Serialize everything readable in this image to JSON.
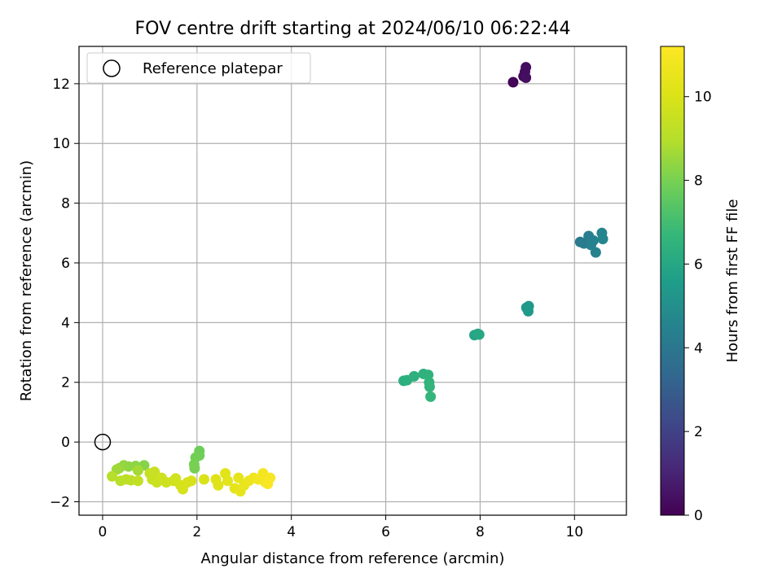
{
  "chart_data": {
    "type": "scatter",
    "title": "FOV centre drift starting at 2024/06/10 06:22:44",
    "xlabel": "Angular distance from reference (arcmin)",
    "ylabel": "Rotation from reference (arcmin)",
    "xlim": [
      -0.5,
      11.1
    ],
    "ylim": [
      -2.45,
      13.25
    ],
    "xticks": [
      "0",
      "2",
      "4",
      "6",
      "8",
      "10"
    ],
    "yticks": [
      "−2",
      "0",
      "2",
      "4",
      "6",
      "8",
      "10",
      "12"
    ],
    "grid": true,
    "legend": {
      "placement": "top-left",
      "entries": [
        "Reference platepar"
      ]
    },
    "reference_point": {
      "x": 0,
      "y": 0,
      "marker": "open-circle"
    },
    "colorbar": {
      "label": "Hours from first FF file",
      "colormap": "viridis",
      "range": [
        0,
        11.2
      ],
      "ticks": [
        "0",
        "2",
        "4",
        "6",
        "8",
        "10"
      ]
    },
    "points": [
      {
        "x": 8.7,
        "y": 12.05,
        "h": 0.1
      },
      {
        "x": 8.92,
        "y": 12.25,
        "h": 0.2
      },
      {
        "x": 8.95,
        "y": 12.4,
        "h": 0.3
      },
      {
        "x": 8.97,
        "y": 12.55,
        "h": 0.35
      },
      {
        "x": 8.97,
        "y": 12.2,
        "h": 0.4
      },
      {
        "x": 10.12,
        "y": 6.7,
        "h": 4.1
      },
      {
        "x": 10.2,
        "y": 6.65,
        "h": 4.2
      },
      {
        "x": 10.3,
        "y": 6.9,
        "h": 4.3
      },
      {
        "x": 10.35,
        "y": 6.6,
        "h": 4.4
      },
      {
        "x": 10.4,
        "y": 6.75,
        "h": 4.45
      },
      {
        "x": 10.45,
        "y": 6.35,
        "h": 4.5
      },
      {
        "x": 10.58,
        "y": 7.0,
        "h": 4.55
      },
      {
        "x": 10.6,
        "y": 6.8,
        "h": 4.6
      },
      {
        "x": 8.98,
        "y": 4.5,
        "h": 5.3
      },
      {
        "x": 9.03,
        "y": 4.55,
        "h": 5.35
      },
      {
        "x": 9.02,
        "y": 4.38,
        "h": 5.4
      },
      {
        "x": 7.88,
        "y": 3.58,
        "h": 5.9
      },
      {
        "x": 7.95,
        "y": 3.62,
        "h": 5.95
      },
      {
        "x": 7.98,
        "y": 3.6,
        "h": 6.0
      },
      {
        "x": 6.38,
        "y": 2.05,
        "h": 6.3
      },
      {
        "x": 6.45,
        "y": 2.07,
        "h": 6.35
      },
      {
        "x": 6.6,
        "y": 2.2,
        "h": 6.4
      },
      {
        "x": 6.8,
        "y": 2.28,
        "h": 6.45
      },
      {
        "x": 6.9,
        "y": 2.25,
        "h": 6.5
      },
      {
        "x": 6.92,
        "y": 2.0,
        "h": 6.55
      },
      {
        "x": 6.93,
        "y": 1.85,
        "h": 6.6
      },
      {
        "x": 6.95,
        "y": 1.52,
        "h": 6.65
      },
      {
        "x": 2.05,
        "y": -0.3,
        "h": 7.8
      },
      {
        "x": 2.05,
        "y": -0.45,
        "h": 7.85
      },
      {
        "x": 1.97,
        "y": -0.52,
        "h": 7.9
      },
      {
        "x": 1.94,
        "y": -0.75,
        "h": 7.95
      },
      {
        "x": 1.95,
        "y": -0.88,
        "h": 8.0
      },
      {
        "x": 0.88,
        "y": -0.78,
        "h": 8.2
      },
      {
        "x": 0.7,
        "y": -0.8,
        "h": 8.3
      },
      {
        "x": 0.55,
        "y": -0.82,
        "h": 8.35
      },
      {
        "x": 0.45,
        "y": -0.78,
        "h": 8.4
      },
      {
        "x": 0.35,
        "y": -0.88,
        "h": 8.5
      },
      {
        "x": 0.3,
        "y": -0.92,
        "h": 8.6
      },
      {
        "x": 0.75,
        "y": -0.95,
        "h": 8.7
      },
      {
        "x": 0.2,
        "y": -1.15,
        "h": 9.0
      },
      {
        "x": 0.38,
        "y": -1.3,
        "h": 9.1
      },
      {
        "x": 0.5,
        "y": -1.25,
        "h": 9.15
      },
      {
        "x": 0.6,
        "y": -1.28,
        "h": 9.2
      },
      {
        "x": 0.75,
        "y": -1.3,
        "h": 9.3
      },
      {
        "x": 1.0,
        "y": -1.05,
        "h": 9.4
      },
      {
        "x": 1.1,
        "y": -1.0,
        "h": 9.45
      },
      {
        "x": 1.05,
        "y": -1.25,
        "h": 9.5
      },
      {
        "x": 1.15,
        "y": -1.35,
        "h": 9.55
      },
      {
        "x": 1.25,
        "y": -1.2,
        "h": 9.6
      },
      {
        "x": 1.35,
        "y": -1.35,
        "h": 9.65
      },
      {
        "x": 1.5,
        "y": -1.3,
        "h": 9.7
      },
      {
        "x": 1.55,
        "y": -1.22,
        "h": 9.75
      },
      {
        "x": 1.65,
        "y": -1.45,
        "h": 9.8
      },
      {
        "x": 1.7,
        "y": -1.58,
        "h": 9.85
      },
      {
        "x": 1.8,
        "y": -1.35,
        "h": 9.9
      },
      {
        "x": 1.88,
        "y": -1.3,
        "h": 9.95
      },
      {
        "x": 2.15,
        "y": -1.25,
        "h": 10.0
      },
      {
        "x": 2.4,
        "y": -1.25,
        "h": 10.1
      },
      {
        "x": 2.45,
        "y": -1.45,
        "h": 10.2
      },
      {
        "x": 2.6,
        "y": -1.05,
        "h": 10.25
      },
      {
        "x": 2.65,
        "y": -1.3,
        "h": 10.3
      },
      {
        "x": 2.8,
        "y": -1.55,
        "h": 10.35
      },
      {
        "x": 2.88,
        "y": -1.2,
        "h": 10.4
      },
      {
        "x": 2.92,
        "y": -1.65,
        "h": 10.45
      },
      {
        "x": 3.0,
        "y": -1.45,
        "h": 10.5
      },
      {
        "x": 3.1,
        "y": -1.3,
        "h": 10.6
      },
      {
        "x": 3.2,
        "y": -1.2,
        "h": 10.7
      },
      {
        "x": 3.3,
        "y": -1.25,
        "h": 10.8
      },
      {
        "x": 3.4,
        "y": -1.05,
        "h": 10.85
      },
      {
        "x": 3.45,
        "y": -1.35,
        "h": 10.9
      },
      {
        "x": 3.55,
        "y": -1.2,
        "h": 11.0
      },
      {
        "x": 3.5,
        "y": -1.4,
        "h": 11.1
      }
    ]
  }
}
